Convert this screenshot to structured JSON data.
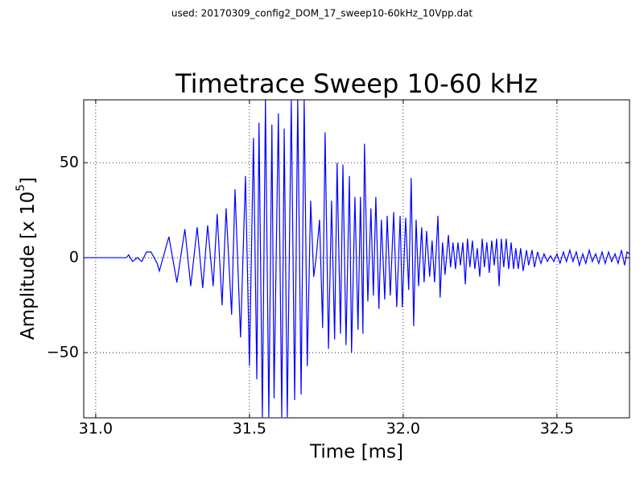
{
  "chart_data": {
    "type": "line",
    "subtitle": "used: 20170309_config2_DOM_17_sweep10-60kHz_10Vpp.dat",
    "title": "Timetrace Sweep 10-60 kHz",
    "xlabel": "Time [ms]",
    "ylabel": "Amplitude [x 10",
    "ylabel_exponent": "5",
    "ylabel_end": "]",
    "color": "#0000ff",
    "grid": true,
    "xlim": [
      30.961,
      32.736
    ],
    "ylim": [
      -84.3,
      83.1
    ],
    "xticks": [
      {
        "value": 31.0,
        "label": "31.0"
      },
      {
        "value": 31.5,
        "label": "31.5"
      },
      {
        "value": 32.0,
        "label": "32.0"
      },
      {
        "value": 32.5,
        "label": "32.5"
      }
    ],
    "yticks": [
      {
        "value": -50,
        "label": "−50"
      },
      0,
      50
    ],
    "x": [
      30.961,
      31.1,
      31.107,
      31.12,
      31.135,
      31.15,
      31.165,
      31.18,
      31.2,
      31.207,
      31.238,
      31.264,
      31.29,
      31.309,
      31.33,
      31.348,
      31.364,
      31.382,
      31.395,
      31.411,
      31.424,
      31.442,
      31.453,
      31.471,
      31.487,
      31.5,
      31.513,
      31.524,
      31.531,
      31.542,
      31.552,
      31.563,
      31.573,
      31.58,
      31.594,
      31.605,
      31.613,
      31.623,
      31.636,
      31.647,
      31.657,
      31.668,
      31.678,
      31.688,
      31.699,
      31.709,
      31.717,
      31.728,
      31.738,
      31.746,
      31.757,
      31.767,
      31.777,
      31.785,
      31.796,
      31.804,
      31.814,
      31.825,
      31.832,
      31.843,
      31.853,
      31.861,
      31.869,
      31.874,
      31.885,
      31.895,
      31.903,
      31.911,
      31.921,
      31.929,
      31.94,
      31.948,
      31.958,
      31.969,
      31.979,
      31.99,
      31.997,
      32.008,
      32.018,
      32.026,
      32.034,
      32.042,
      32.05,
      32.06,
      32.068,
      32.076,
      32.086,
      32.094,
      32.102,
      32.113,
      32.12,
      32.128,
      32.136,
      32.147,
      32.154,
      32.162,
      32.17,
      32.178,
      32.186,
      32.194,
      32.202,
      32.209,
      32.217,
      32.225,
      32.233,
      32.241,
      32.249,
      32.257,
      32.264,
      32.272,
      32.28,
      32.288,
      32.296,
      32.304,
      32.312,
      32.319,
      32.327,
      32.335,
      32.343,
      32.351,
      32.359,
      32.366,
      32.374,
      32.382,
      32.39,
      32.401,
      32.408,
      32.419,
      32.427,
      32.437,
      32.448,
      32.458,
      32.469,
      32.479,
      32.49,
      32.5,
      32.51,
      32.521,
      32.531,
      32.542,
      32.552,
      32.563,
      32.573,
      32.584,
      32.594,
      32.605,
      32.615,
      32.626,
      32.636,
      32.647,
      32.657,
      32.668,
      32.678,
      32.689,
      32.699,
      32.71,
      32.72,
      32.728,
      32.736
    ],
    "values": [
      0,
      0,
      1.5,
      -2,
      0,
      -2,
      3,
      3,
      -3,
      -7,
      11,
      -13,
      15,
      -15,
      16,
      -16,
      17,
      -15,
      23,
      -25,
      26,
      -30,
      36,
      -42,
      43,
      -57,
      63,
      -64,
      71,
      -84,
      83,
      -84,
      70,
      -74,
      76,
      -84,
      68,
      -84,
      83,
      -75,
      83,
      -72,
      83,
      -57,
      30,
      -10,
      0,
      20,
      -37,
      66,
      -48,
      30,
      -43,
      50,
      -40,
      49,
      -46,
      43,
      -50,
      32,
      -38,
      32,
      -40,
      60,
      -23,
      26,
      -20,
      32,
      -27,
      20,
      -22,
      22,
      -20,
      24,
      -26,
      22,
      -26,
      21,
      -17,
      42,
      -36,
      20,
      -15,
      16,
      -13,
      14,
      -10,
      9,
      -13,
      22,
      -21,
      8,
      -9,
      12,
      -5,
      8,
      -6,
      8,
      -4,
      8,
      -14,
      10,
      -5,
      9,
      -6,
      5,
      -10,
      10,
      -5,
      8,
      -8,
      9,
      -4,
      10,
      -15,
      10,
      -5,
      10,
      -6,
      8,
      -6,
      5,
      -6,
      5,
      -7,
      4,
      -4,
      4,
      -5,
      3,
      -3,
      2,
      -2,
      1,
      -2,
      2,
      -3,
      3,
      -2,
      4,
      -2,
      3,
      -4,
      2,
      -3,
      4,
      -2,
      2,
      -3,
      3,
      -3,
      3,
      -2,
      2,
      -3,
      4,
      -4,
      3,
      2
    ]
  }
}
